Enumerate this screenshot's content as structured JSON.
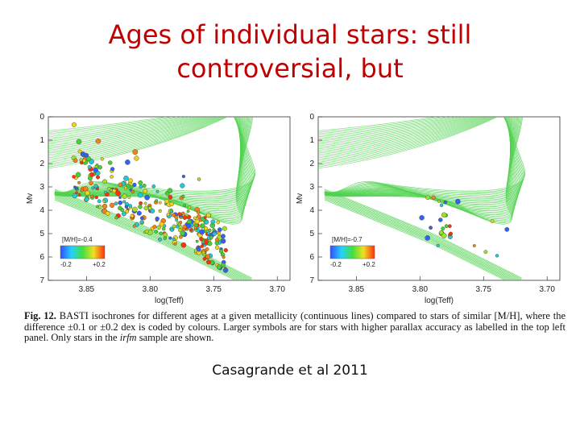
{
  "slide": {
    "title_line1": "Ages of individual stars: still",
    "title_line2": "controversial, but",
    "credit": "Casagrande et al 2011"
  },
  "figure": {
    "caption_label": "Fig. 12.",
    "caption_text_a": " BASTI isochrones for different ages at a given metallicity (continuous lines) compared to stars of similar [M/H], where the difference ±0.1 or ±0.2 dex is coded by colours. Larger symbols are for stars with higher parallax accuracy as labelled in the top left panel. Only stars in the ",
    "caption_italic": "irfm",
    "caption_text_b": " sample are shown.",
    "colors": {
      "isochrone": "#4fd24f",
      "axis": "#333333"
    }
  },
  "chart_data": [
    {
      "type": "scatter",
      "panel": "left",
      "xlabel": "log(Teff)",
      "ylabel": "Mv",
      "xlim": [
        3.88,
        3.69
      ],
      "ylim": [
        7,
        0
      ],
      "xticks": [
        "3.85",
        "3.80",
        "3.75",
        "3.70"
      ],
      "yticks": [
        "0",
        "1",
        "2",
        "3",
        "4",
        "5",
        "6",
        "7"
      ],
      "legend_label": "[M/H]=-0.4",
      "colorbar_min": "-0.2",
      "colorbar_max": "+0.2",
      "star_count": 320
    },
    {
      "type": "scatter",
      "panel": "right",
      "xlabel": "log(Teff)",
      "ylabel": "Mv",
      "xlim": [
        3.88,
        3.69
      ],
      "ylim": [
        7,
        0
      ],
      "xticks": [
        "3.85",
        "3.80",
        "3.75",
        "3.70"
      ],
      "yticks": [
        "0",
        "1",
        "2",
        "3",
        "4",
        "5",
        "6",
        "7"
      ],
      "legend_label": "[M/H]=-0.7",
      "colorbar_min": "-0.2",
      "colorbar_max": "+0.2",
      "star_count": 28
    }
  ]
}
